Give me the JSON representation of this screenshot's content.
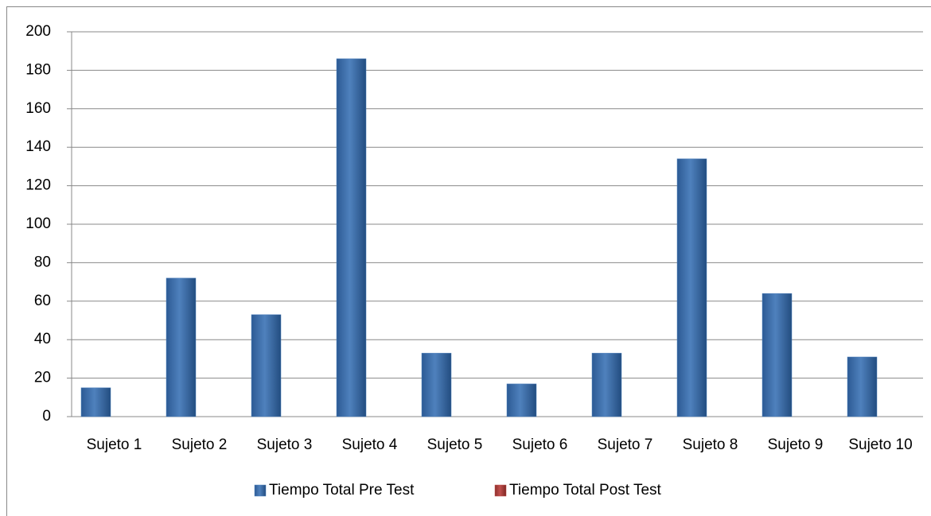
{
  "chart_data": {
    "type": "bar",
    "categories": [
      "Sujeto 1",
      "Sujeto 2",
      "Sujeto 3",
      "Sujeto 4",
      "Sujeto 5",
      "Sujeto 6",
      "Sujeto 7",
      "Sujeto 8",
      "Sujeto 9",
      "Sujeto 10"
    ],
    "series": [
      {
        "name": "Tiempo Total Pre Test",
        "color": "#4f81bd",
        "values": [
          15,
          72,
          53,
          186,
          33,
          17,
          33,
          134,
          64,
          31
        ]
      },
      {
        "name": "Tiempo Total Post Test",
        "color": "#c0504d",
        "values": [
          0,
          0,
          0,
          0,
          0,
          0,
          0,
          0,
          0,
          0
        ]
      }
    ],
    "ylim": [
      0,
      200
    ],
    "yticks": [
      0,
      20,
      40,
      60,
      80,
      100,
      120,
      140,
      160,
      180,
      200
    ],
    "grid": true,
    "legend": "bottom"
  }
}
